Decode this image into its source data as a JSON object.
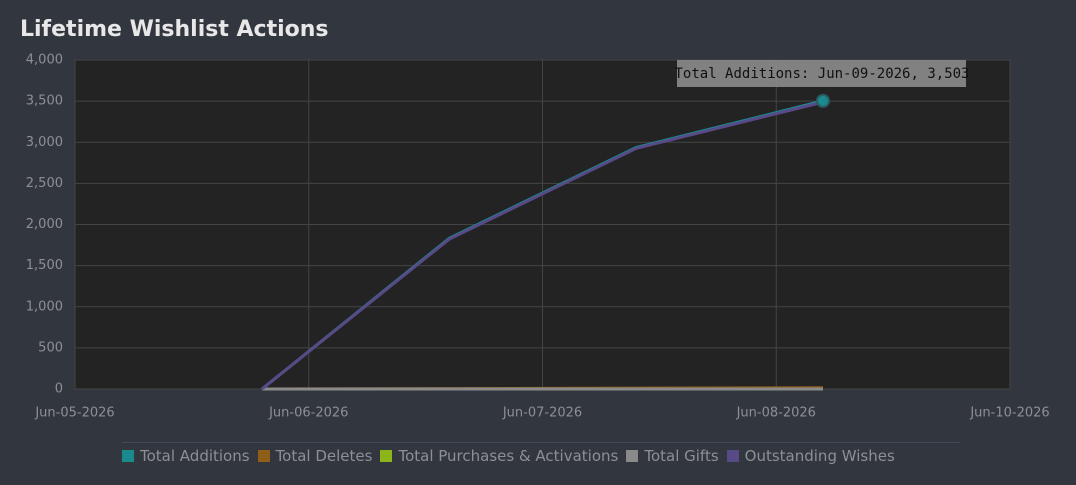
{
  "chart_data": {
    "type": "line",
    "title": "Lifetime Wishlist Actions",
    "tooltip": "Total Additions: Jun-09-2026, 3,503",
    "x": [
      "2026-06-06",
      "2026-06-07",
      "2026-06-08",
      "2026-06-09"
    ],
    "xlim": [
      "2026-06-05",
      "2026-06-10"
    ],
    "xticks": [
      {
        "value": "2026-06-05",
        "label": "Jun-05-2026"
      },
      {
        "value": "2026-06-06T06:00",
        "label": "Jun-06-2026"
      },
      {
        "value": "2026-06-07T12:00",
        "label": "Jun-07-2026"
      },
      {
        "value": "2026-06-08T18:00",
        "label": "Jun-08-2026"
      },
      {
        "value": "2026-06-10",
        "label": "Jun-10-2026"
      }
    ],
    "ylim": [
      0,
      4000
    ],
    "yticks": [
      0,
      500,
      {
        "value": 1000,
        "label": "1,000"
      },
      {
        "value": 1500,
        "label": "1,500"
      },
      {
        "value": 2000,
        "label": "2,000"
      },
      {
        "value": 2500,
        "label": "2,500"
      },
      {
        "value": 3000,
        "label": "3,000"
      },
      {
        "value": 3500,
        "label": "3,500"
      },
      {
        "value": 4000,
        "label": "4,000"
      }
    ],
    "grid": true,
    "series": [
      {
        "name": "Total Additions",
        "color": "#1b8a8e",
        "values": [
          0,
          1830,
          2935,
          3503
        ]
      },
      {
        "name": "Total Deletes",
        "color": "#8f5f17",
        "values": [
          0,
          5,
          10,
          15
        ]
      },
      {
        "name": "Total Purchases & Activations",
        "color": "#8cb51c",
        "values": [
          0,
          0,
          0,
          0
        ]
      },
      {
        "name": "Total Gifts",
        "color": "#8a8a8a",
        "values": [
          0,
          0,
          0,
          0
        ]
      },
      {
        "name": "Outstanding Wishes",
        "color": "#574a86",
        "values": [
          0,
          1820,
          2925,
          3488
        ]
      }
    ]
  }
}
